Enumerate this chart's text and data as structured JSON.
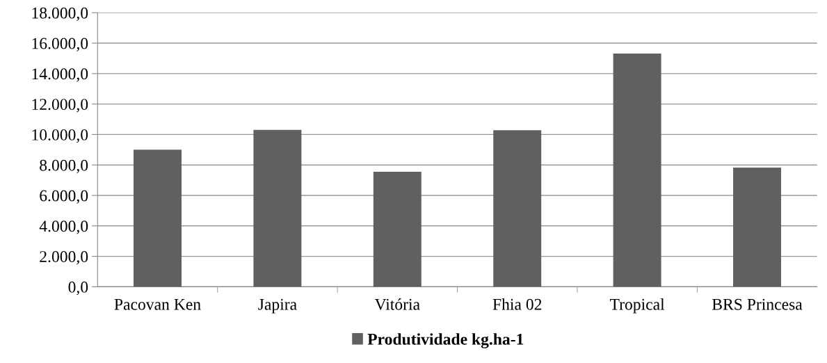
{
  "chart_data": {
    "type": "bar",
    "categories": [
      "Pacovan Ken",
      "Japira",
      "Vitória",
      "Fhia 02",
      "Tropical",
      "BRS Princesa"
    ],
    "series": [
      {
        "name": "Produtividade kg.ha-1",
        "color": "#606060",
        "values": [
          9000,
          10300,
          7550,
          10280,
          15320,
          7830
        ]
      }
    ],
    "ylim": [
      0,
      18000
    ],
    "yticks": [
      {
        "value": 0,
        "label": "0,0"
      },
      {
        "value": 2000,
        "label": "2.000,0"
      },
      {
        "value": 4000,
        "label": "4.000,0"
      },
      {
        "value": 6000,
        "label": "6.000,0"
      },
      {
        "value": 8000,
        "label": "8.000,0"
      },
      {
        "value": 10000,
        "label": "10.000,0"
      },
      {
        "value": 12000,
        "label": "12.000,0"
      },
      {
        "value": 14000,
        "label": "14.000,0"
      },
      {
        "value": 16000,
        "label": "16.000,0"
      },
      {
        "value": 18000,
        "label": "18.000,0"
      }
    ],
    "grid": "y",
    "legend": "bottom"
  }
}
